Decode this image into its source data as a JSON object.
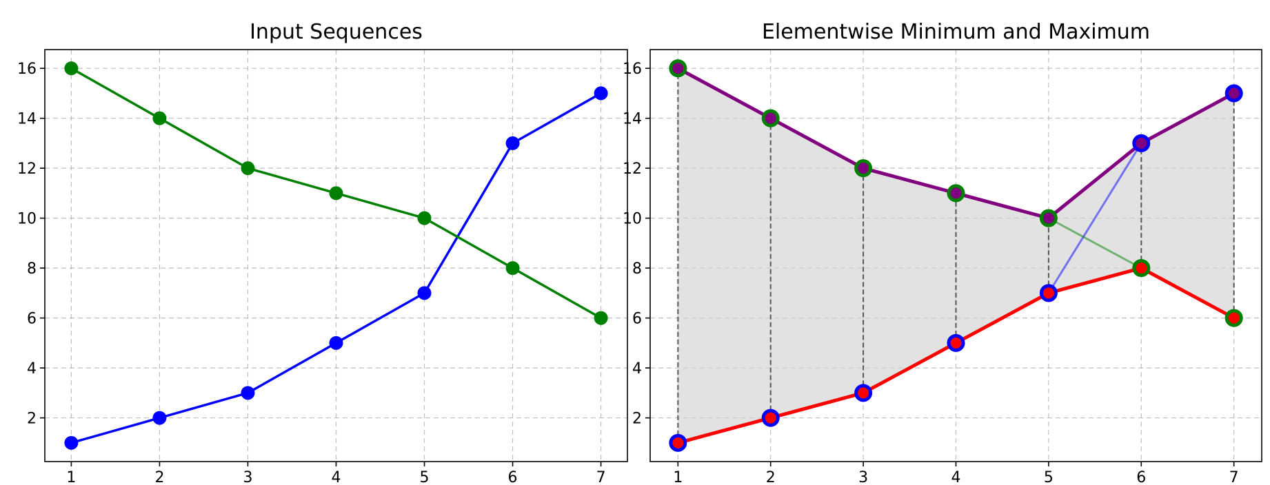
{
  "chart_data": [
    {
      "type": "line",
      "title": "Input Sequences",
      "xlabel": "",
      "ylabel": "",
      "x": [
        1,
        2,
        3,
        4,
        5,
        6,
        7
      ],
      "xlim": [
        0.7,
        7.3
      ],
      "ylim": [
        0.25,
        16.75
      ],
      "xticks": [
        1,
        2,
        3,
        4,
        5,
        6,
        7
      ],
      "yticks": [
        2,
        4,
        6,
        8,
        10,
        12,
        14,
        16
      ],
      "grid": true,
      "series": [
        {
          "values": [
            1,
            2,
            3,
            5,
            7,
            13,
            15
          ],
          "color": "#0000ff",
          "marker": "circle"
        },
        {
          "values": [
            16,
            14,
            12,
            11,
            10,
            8,
            6
          ],
          "color": "#008000",
          "marker": "circle"
        }
      ]
    },
    {
      "type": "line",
      "title": "Elementwise Minimum and Maximum",
      "xlabel": "",
      "ylabel": "",
      "x": [
        1,
        2,
        3,
        4,
        5,
        6,
        7
      ],
      "xlim": [
        0.7,
        7.3
      ],
      "ylim": [
        0.25,
        16.75
      ],
      "xticks": [
        1,
        2,
        3,
        4,
        5,
        6,
        7
      ],
      "yticks": [
        2,
        4,
        6,
        8,
        10,
        12,
        14,
        16
      ],
      "grid": true,
      "fill_between": {
        "color": "#d3d3d3"
      },
      "vertical_connectors": {
        "color": "#555555",
        "style": "dashed"
      },
      "faint_inputs": [
        {
          "values": [
            1,
            2,
            3,
            5,
            7,
            13,
            15
          ],
          "color": "#0000ff",
          "opacity": 0.5
        },
        {
          "values": [
            16,
            14,
            12,
            11,
            10,
            8,
            6
          ],
          "color": "#008000",
          "opacity": 0.5
        }
      ],
      "series": [
        {
          "values": [
            1,
            2,
            3,
            5,
            7,
            8,
            6
          ],
          "color": "#ff0000",
          "marker_edge_colors": [
            "#0000ff",
            "#0000ff",
            "#0000ff",
            "#0000ff",
            "#0000ff",
            "#008000",
            "#008000"
          ]
        },
        {
          "values": [
            16,
            14,
            12,
            11,
            10,
            13,
            15
          ],
          "color": "#800080",
          "marker_edge_colors": [
            "#008000",
            "#008000",
            "#008000",
            "#008000",
            "#008000",
            "#0000ff",
            "#0000ff"
          ]
        }
      ]
    }
  ]
}
